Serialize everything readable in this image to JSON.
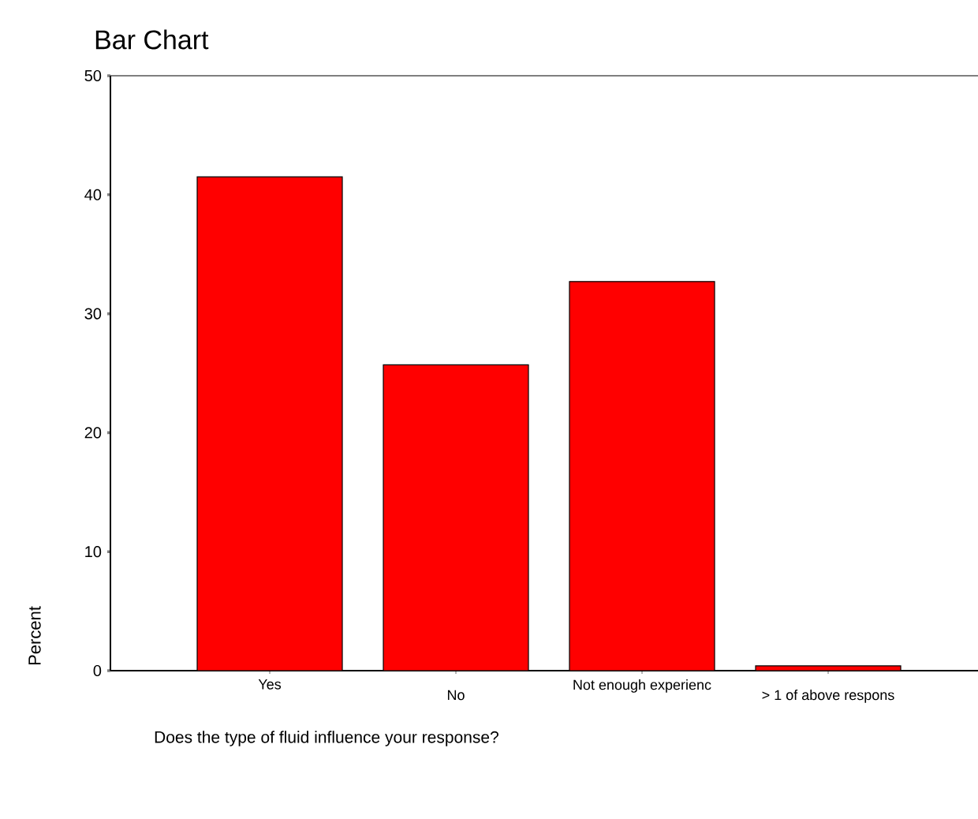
{
  "chart_data": {
    "type": "bar",
    "title": "Bar Chart",
    "xlabel": "Does the type of fluid influence your response?",
    "ylabel": "Percent",
    "categories": [
      "Yes",
      "No",
      "Not enough experienc",
      "> 1 of above respons"
    ],
    "values": [
      41.5,
      25.7,
      32.7,
      0.4
    ],
    "color": "#ff0000",
    "ylim": [
      0,
      50
    ],
    "yticks": [
      0,
      10,
      20,
      30,
      40,
      50
    ],
    "grid": false
  }
}
